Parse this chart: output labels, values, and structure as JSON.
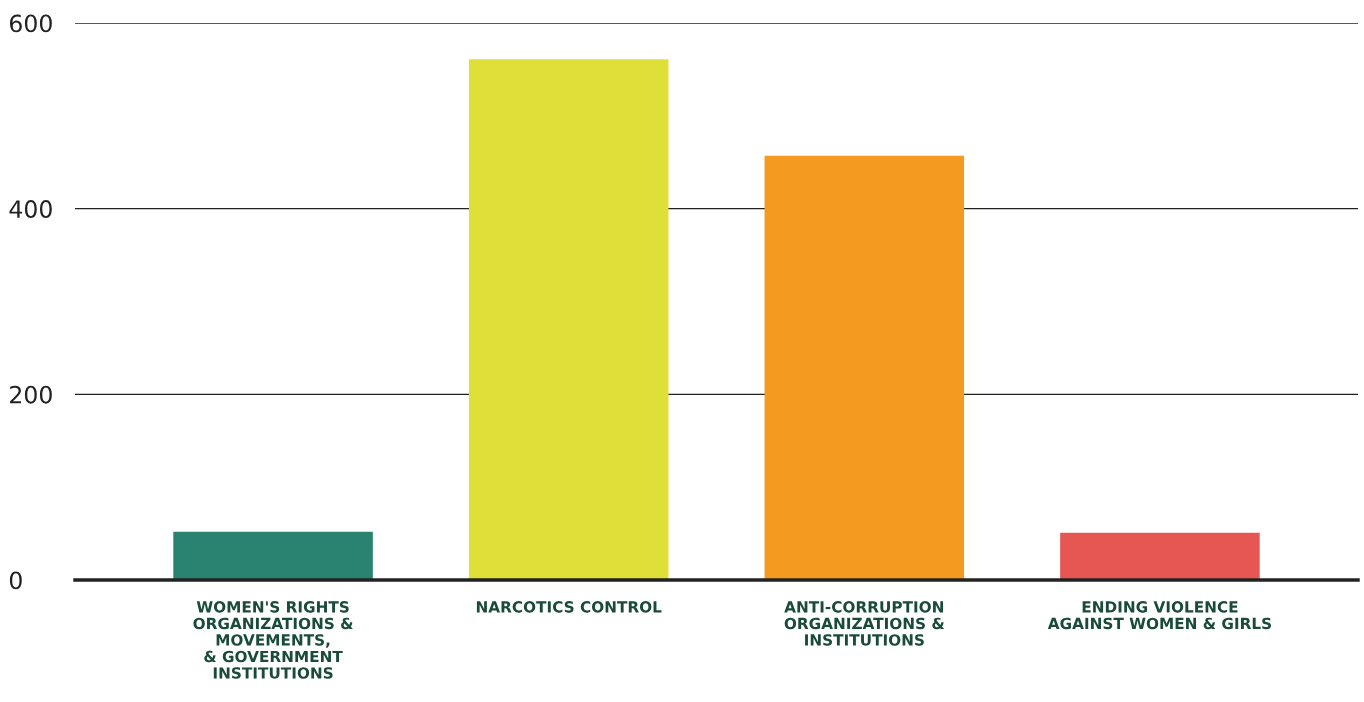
{
  "chart_data": {
    "type": "bar",
    "categories": [
      "WOMEN'S RIGHTS\nORGANIZATIONS &\nMOVEMENTS,\n& GOVERNMENT\nINSTITUTIONS",
      "NARCOTICS CONTROL",
      "ANTI-CORRUPTION\nORGANIZATIONS &\nINSTITUTIONS",
      "ENDING VIOLENCE\nAGAINST WOMEN & GIRLS"
    ],
    "values": [
      52,
      561,
      457,
      51
    ],
    "colors": [
      "#2a8370",
      "#dfdf3a",
      "#f59a20",
      "#e65753"
    ],
    "ylim": [
      0,
      600
    ],
    "yticks": [
      0,
      200,
      400,
      600
    ],
    "grid": "y"
  }
}
